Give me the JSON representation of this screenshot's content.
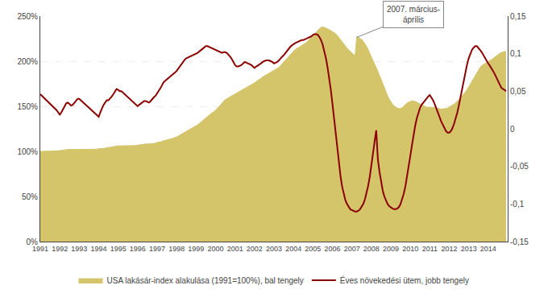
{
  "chart_data": {
    "type": "line",
    "x": [
      1991.0,
      1991.083,
      1991.167,
      1991.25,
      1991.333,
      1991.417,
      1991.5,
      1991.583,
      1991.667,
      1991.75,
      1991.833,
      1991.917,
      1992.0,
      1992.083,
      1992.167,
      1992.25,
      1992.333,
      1992.417,
      1992.5,
      1992.583,
      1992.667,
      1992.75,
      1992.833,
      1992.917,
      1993.0,
      1993.083,
      1993.167,
      1993.25,
      1993.333,
      1993.417,
      1993.5,
      1993.583,
      1993.667,
      1993.75,
      1993.833,
      1993.917,
      1994.0,
      1994.083,
      1994.167,
      1994.25,
      1994.333,
      1994.417,
      1994.5,
      1994.583,
      1994.667,
      1994.75,
      1994.833,
      1994.917,
      1995.0,
      1995.083,
      1995.167,
      1995.25,
      1995.333,
      1995.417,
      1995.5,
      1995.583,
      1995.667,
      1995.75,
      1995.833,
      1995.917,
      1996.0,
      1996.083,
      1996.167,
      1996.25,
      1996.333,
      1996.417,
      1996.5,
      1996.583,
      1996.667,
      1996.75,
      1996.833,
      1996.917,
      1997.0,
      1997.083,
      1997.167,
      1997.25,
      1997.333,
      1997.417,
      1997.5,
      1997.583,
      1997.667,
      1997.75,
      1997.833,
      1997.917,
      1998.0,
      1998.083,
      1998.167,
      1998.25,
      1998.333,
      1998.417,
      1998.5,
      1998.583,
      1998.667,
      1998.75,
      1998.833,
      1998.917,
      1999.0,
      1999.083,
      1999.167,
      1999.25,
      1999.333,
      1999.417,
      1999.5,
      1999.583,
      1999.667,
      1999.75,
      1999.833,
      1999.917,
      2000.0,
      2000.083,
      2000.167,
      2000.25,
      2000.333,
      2000.417,
      2000.5,
      2000.583,
      2000.667,
      2000.75,
      2000.833,
      2000.917,
      2001.0,
      2001.083,
      2001.167,
      2001.25,
      2001.333,
      2001.417,
      2001.5,
      2001.583,
      2001.667,
      2001.75,
      2001.833,
      2001.917,
      2002.0,
      2002.083,
      2002.167,
      2002.25,
      2002.333,
      2002.417,
      2002.5,
      2002.583,
      2002.667,
      2002.75,
      2002.833,
      2002.917,
      2003.0,
      2003.083,
      2003.167,
      2003.25,
      2003.333,
      2003.417,
      2003.5,
      2003.583,
      2003.667,
      2003.75,
      2003.833,
      2003.917,
      2004.0,
      2004.083,
      2004.167,
      2004.25,
      2004.333,
      2004.417,
      2004.5,
      2004.583,
      2004.667,
      2004.75,
      2004.833,
      2004.917,
      2005.0,
      2005.083,
      2005.167,
      2005.25,
      2005.333,
      2005.417,
      2005.5,
      2005.583,
      2005.667,
      2005.75,
      2005.833,
      2005.917,
      2006.0,
      2006.083,
      2006.167,
      2006.25,
      2006.333,
      2006.417,
      2006.5,
      2006.583,
      2006.667,
      2006.75,
      2006.833,
      2006.917,
      2007.0,
      2007.083,
      2007.167,
      2007.25,
      2007.333,
      2007.417,
      2007.5,
      2007.583,
      2007.667,
      2007.75,
      2007.833,
      2007.917,
      2008.0,
      2008.083,
      2008.167,
      2008.25,
      2008.333,
      2008.417,
      2008.5,
      2008.583,
      2008.667,
      2008.75,
      2008.833,
      2008.917,
      2009.0,
      2009.083,
      2009.167,
      2009.25,
      2009.333,
      2009.417,
      2009.5,
      2009.583,
      2009.667,
      2009.75,
      2009.833,
      2009.917,
      2010.0,
      2010.083,
      2010.167,
      2010.25,
      2010.333,
      2010.417,
      2010.5,
      2010.583,
      2010.667,
      2010.75,
      2010.833,
      2010.917,
      2011.0,
      2011.083,
      2011.167,
      2011.25,
      2011.333,
      2011.417,
      2011.5,
      2011.583,
      2011.667,
      2011.75,
      2011.833,
      2011.917,
      2012.0,
      2012.083,
      2012.167,
      2012.25,
      2012.333,
      2012.417,
      2012.5,
      2012.583,
      2012.667,
      2012.75,
      2012.833,
      2012.917,
      2013.0,
      2013.083,
      2013.167,
      2013.25,
      2013.333,
      2013.417,
      2013.5,
      2013.583,
      2013.667,
      2013.75,
      2013.833,
      2013.917,
      2014.0,
      2014.083,
      2014.167,
      2014.25,
      2014.333,
      2014.417,
      2014.5,
      2014.583,
      2014.667,
      2014.75,
      2014.833,
      2014.917
    ],
    "series": [
      {
        "name": "USA lakásár-index alakulása (1991=100%), bal tengely",
        "type": "area",
        "color": "#D4C46A",
        "values": [
          1.0,
          1.0,
          1.0,
          1.005,
          1.005,
          1.005,
          1.005,
          1.005,
          1.005,
          1.005,
          1.005,
          1.005,
          1.01,
          1.01,
          1.015,
          1.015,
          1.02,
          1.02,
          1.02,
          1.02,
          1.025,
          1.025,
          1.025,
          1.025,
          1.025,
          1.025,
          1.025,
          1.025,
          1.025,
          1.025,
          1.025,
          1.025,
          1.025,
          1.025,
          1.025,
          1.025,
          1.03,
          1.03,
          1.03,
          1.03,
          1.035,
          1.04,
          1.04,
          1.045,
          1.05,
          1.05,
          1.055,
          1.06,
          1.06,
          1.06,
          1.065,
          1.065,
          1.065,
          1.065,
          1.065,
          1.065,
          1.065,
          1.065,
          1.065,
          1.065,
          1.07,
          1.07,
          1.07,
          1.075,
          1.08,
          1.08,
          1.08,
          1.08,
          1.085,
          1.085,
          1.09,
          1.09,
          1.1,
          1.1,
          1.105,
          1.11,
          1.12,
          1.12,
          1.13,
          1.13,
          1.14,
          1.14,
          1.15,
          1.155,
          1.16,
          1.17,
          1.18,
          1.19,
          1.205,
          1.215,
          1.225,
          1.235,
          1.245,
          1.255,
          1.265,
          1.275,
          1.285,
          1.295,
          1.31,
          1.325,
          1.34,
          1.355,
          1.375,
          1.39,
          1.405,
          1.415,
          1.43,
          1.44,
          1.455,
          1.475,
          1.495,
          1.515,
          1.535,
          1.555,
          1.575,
          1.585,
          1.595,
          1.605,
          1.615,
          1.625,
          1.635,
          1.645,
          1.655,
          1.665,
          1.675,
          1.69,
          1.7,
          1.71,
          1.72,
          1.73,
          1.74,
          1.75,
          1.76,
          1.775,
          1.785,
          1.8,
          1.81,
          1.825,
          1.835,
          1.845,
          1.855,
          1.865,
          1.875,
          1.885,
          1.895,
          1.905,
          1.915,
          1.93,
          1.95,
          1.97,
          1.99,
          2.01,
          2.03,
          2.055,
          2.075,
          2.095,
          2.115,
          2.13,
          2.14,
          2.15,
          2.16,
          2.175,
          2.185,
          2.195,
          2.21,
          2.225,
          2.245,
          2.265,
          2.285,
          2.305,
          2.325,
          2.345,
          2.36,
          2.375,
          2.38,
          2.375,
          2.37,
          2.36,
          2.35,
          2.34,
          2.33,
          2.32,
          2.305,
          2.285,
          2.26,
          2.235,
          2.21,
          2.185,
          2.165,
          2.145,
          2.125,
          2.105,
          2.09,
          2.075,
          2.065,
          2.27,
          2.265,
          2.255,
          2.24,
          2.22,
          2.195,
          2.165,
          2.13,
          2.09,
          2.055,
          2.015,
          1.975,
          1.935,
          1.89,
          1.845,
          1.8,
          1.75,
          1.7,
          1.655,
          1.615,
          1.58,
          1.55,
          1.525,
          1.505,
          1.49,
          1.48,
          1.475,
          1.475,
          1.485,
          1.505,
          1.52,
          1.535,
          1.545,
          1.555,
          1.56,
          1.56,
          1.555,
          1.545,
          1.535,
          1.525,
          1.515,
          1.505,
          1.495,
          1.49,
          1.49,
          1.49,
          1.49,
          1.49,
          1.485,
          1.48,
          1.475,
          1.47,
          1.47,
          1.47,
          1.47,
          1.475,
          1.48,
          1.49,
          1.5,
          1.51,
          1.525,
          1.54,
          1.555,
          1.575,
          1.595,
          1.615,
          1.635,
          1.66,
          1.685,
          1.715,
          1.745,
          1.775,
          1.805,
          1.84,
          1.875,
          1.905,
          1.93,
          1.95,
          1.965,
          1.975,
          1.985,
          1.995,
          2.005,
          2.015,
          2.03,
          2.045,
          2.06,
          2.075,
          2.085,
          2.095,
          2.1,
          2.105,
          2.11
        ]
      },
      {
        "name": "Éves növekedési ütem, jobb tengely",
        "type": "line",
        "color": "#8B0000",
        "axis": "y2",
        "values": [
          0.046,
          0.044,
          0.042,
          0.04,
          0.038,
          0.036,
          0.034,
          0.032,
          0.03,
          0.028,
          0.025,
          0.022,
          0.019,
          0.022,
          0.026,
          0.03,
          0.034,
          0.035,
          0.033,
          0.031,
          0.032,
          0.035,
          0.038,
          0.04,
          0.04,
          0.038,
          0.036,
          0.034,
          0.032,
          0.03,
          0.028,
          0.026,
          0.024,
          0.022,
          0.02,
          0.018,
          0.016,
          0.022,
          0.028,
          0.032,
          0.035,
          0.038,
          0.038,
          0.04,
          0.043,
          0.046,
          0.05,
          0.053,
          0.052,
          0.05,
          0.05,
          0.048,
          0.046,
          0.044,
          0.042,
          0.04,
          0.038,
          0.035,
          0.033,
          0.031,
          0.03,
          0.032,
          0.034,
          0.036,
          0.037,
          0.037,
          0.036,
          0.035,
          0.037,
          0.04,
          0.042,
          0.044,
          0.047,
          0.05,
          0.054,
          0.058,
          0.062,
          0.064,
          0.066,
          0.067,
          0.069,
          0.071,
          0.073,
          0.075,
          0.077,
          0.08,
          0.084,
          0.087,
          0.09,
          0.092,
          0.094,
          0.095,
          0.096,
          0.097,
          0.098,
          0.099,
          0.1,
          0.101,
          0.103,
          0.105,
          0.107,
          0.109,
          0.11,
          0.11,
          0.109,
          0.108,
          0.107,
          0.106,
          0.105,
          0.104,
          0.103,
          0.102,
          0.101,
          0.102,
          0.102,
          0.101,
          0.099,
          0.096,
          0.093,
          0.089,
          0.085,
          0.083,
          0.083,
          0.084,
          0.085,
          0.087,
          0.089,
          0.088,
          0.087,
          0.086,
          0.085,
          0.083,
          0.081,
          0.083,
          0.084,
          0.086,
          0.087,
          0.089,
          0.09,
          0.091,
          0.091,
          0.091,
          0.09,
          0.089,
          0.087,
          0.088,
          0.089,
          0.091,
          0.094,
          0.096,
          0.098,
          0.101,
          0.103,
          0.106,
          0.109,
          0.111,
          0.113,
          0.114,
          0.115,
          0.116,
          0.117,
          0.118,
          0.118,
          0.119,
          0.12,
          0.121,
          0.122,
          0.123,
          0.125,
          0.126,
          0.126,
          0.125,
          0.122,
          0.118,
          0.112,
          0.104,
          0.094,
          0.082,
          0.068,
          0.052,
          0.034,
          0.014,
          -0.006,
          -0.026,
          -0.047,
          -0.063,
          -0.077,
          -0.088,
          -0.095,
          -0.1,
          -0.104,
          -0.107,
          -0.108,
          -0.109,
          -0.11,
          -0.11,
          -0.109,
          -0.107,
          -0.104,
          -0.1,
          -0.094,
          -0.086,
          -0.076,
          -0.064,
          -0.05,
          -0.034,
          -0.017,
          -0.002,
          -0.04,
          -0.057,
          -0.071,
          -0.082,
          -0.09,
          -0.096,
          -0.1,
          -0.103,
          -0.105,
          -0.106,
          -0.107,
          -0.107,
          -0.106,
          -0.104,
          -0.1,
          -0.094,
          -0.086,
          -0.076,
          -0.064,
          -0.051,
          -0.036,
          -0.022,
          -0.008,
          0.004,
          0.014,
          0.022,
          0.028,
          0.032,
          0.035,
          0.038,
          0.04,
          0.043,
          0.045,
          0.042,
          0.038,
          0.033,
          0.028,
          0.022,
          0.016,
          0.01,
          0.005,
          0.0,
          -0.003,
          -0.005,
          -0.005,
          -0.003,
          0.001,
          0.007,
          0.014,
          0.022,
          0.032,
          0.043,
          0.055,
          0.066,
          0.076,
          0.086,
          0.094,
          0.1,
          0.105,
          0.108,
          0.11,
          0.11,
          0.108,
          0.105,
          0.102,
          0.098,
          0.094,
          0.09,
          0.087,
          0.084,
          0.081,
          0.077,
          0.073,
          0.068,
          0.063,
          0.059,
          0.055,
          0.053,
          0.052,
          0.05
        ]
      }
    ],
    "xlim": [
      1991.0,
      2015.0
    ],
    "xticks": [
      1991,
      1992,
      1993,
      1994,
      1995,
      1996,
      1997,
      1998,
      1999,
      2000,
      2001,
      2002,
      2003,
      2004,
      2005,
      2006,
      2007,
      2008,
      2009,
      2010,
      2011,
      2012,
      2013,
      2014
    ],
    "ylim": [
      0.0,
      2.5
    ],
    "yticks": [
      {
        "value": 0.0,
        "label": "0%"
      },
      {
        "value": 0.5,
        "label": "50%"
      },
      {
        "value": 1.0,
        "label": "100%"
      },
      {
        "value": 1.5,
        "label": "150%"
      },
      {
        "value": 2.0,
        "label": "200%"
      },
      {
        "value": 2.5,
        "label": "250%"
      }
    ],
    "y2lim": [
      -0.15,
      0.15
    ],
    "y2ticks": [
      {
        "value": -0.15,
        "label": "-0,15"
      },
      {
        "value": -0.1,
        "label": "-0,1"
      },
      {
        "value": -0.05,
        "label": "-0,05"
      },
      0,
      {
        "value": 0.05,
        "label": "0,05"
      },
      {
        "value": 0.1,
        "label": "0,1"
      },
      {
        "value": 0.15,
        "label": "0,15"
      }
    ],
    "grid": true,
    "legend": "bottom",
    "annotations": [
      {
        "text": "2007. március-\náprilis",
        "x": 2007.25,
        "y": 2.265
      }
    ]
  }
}
